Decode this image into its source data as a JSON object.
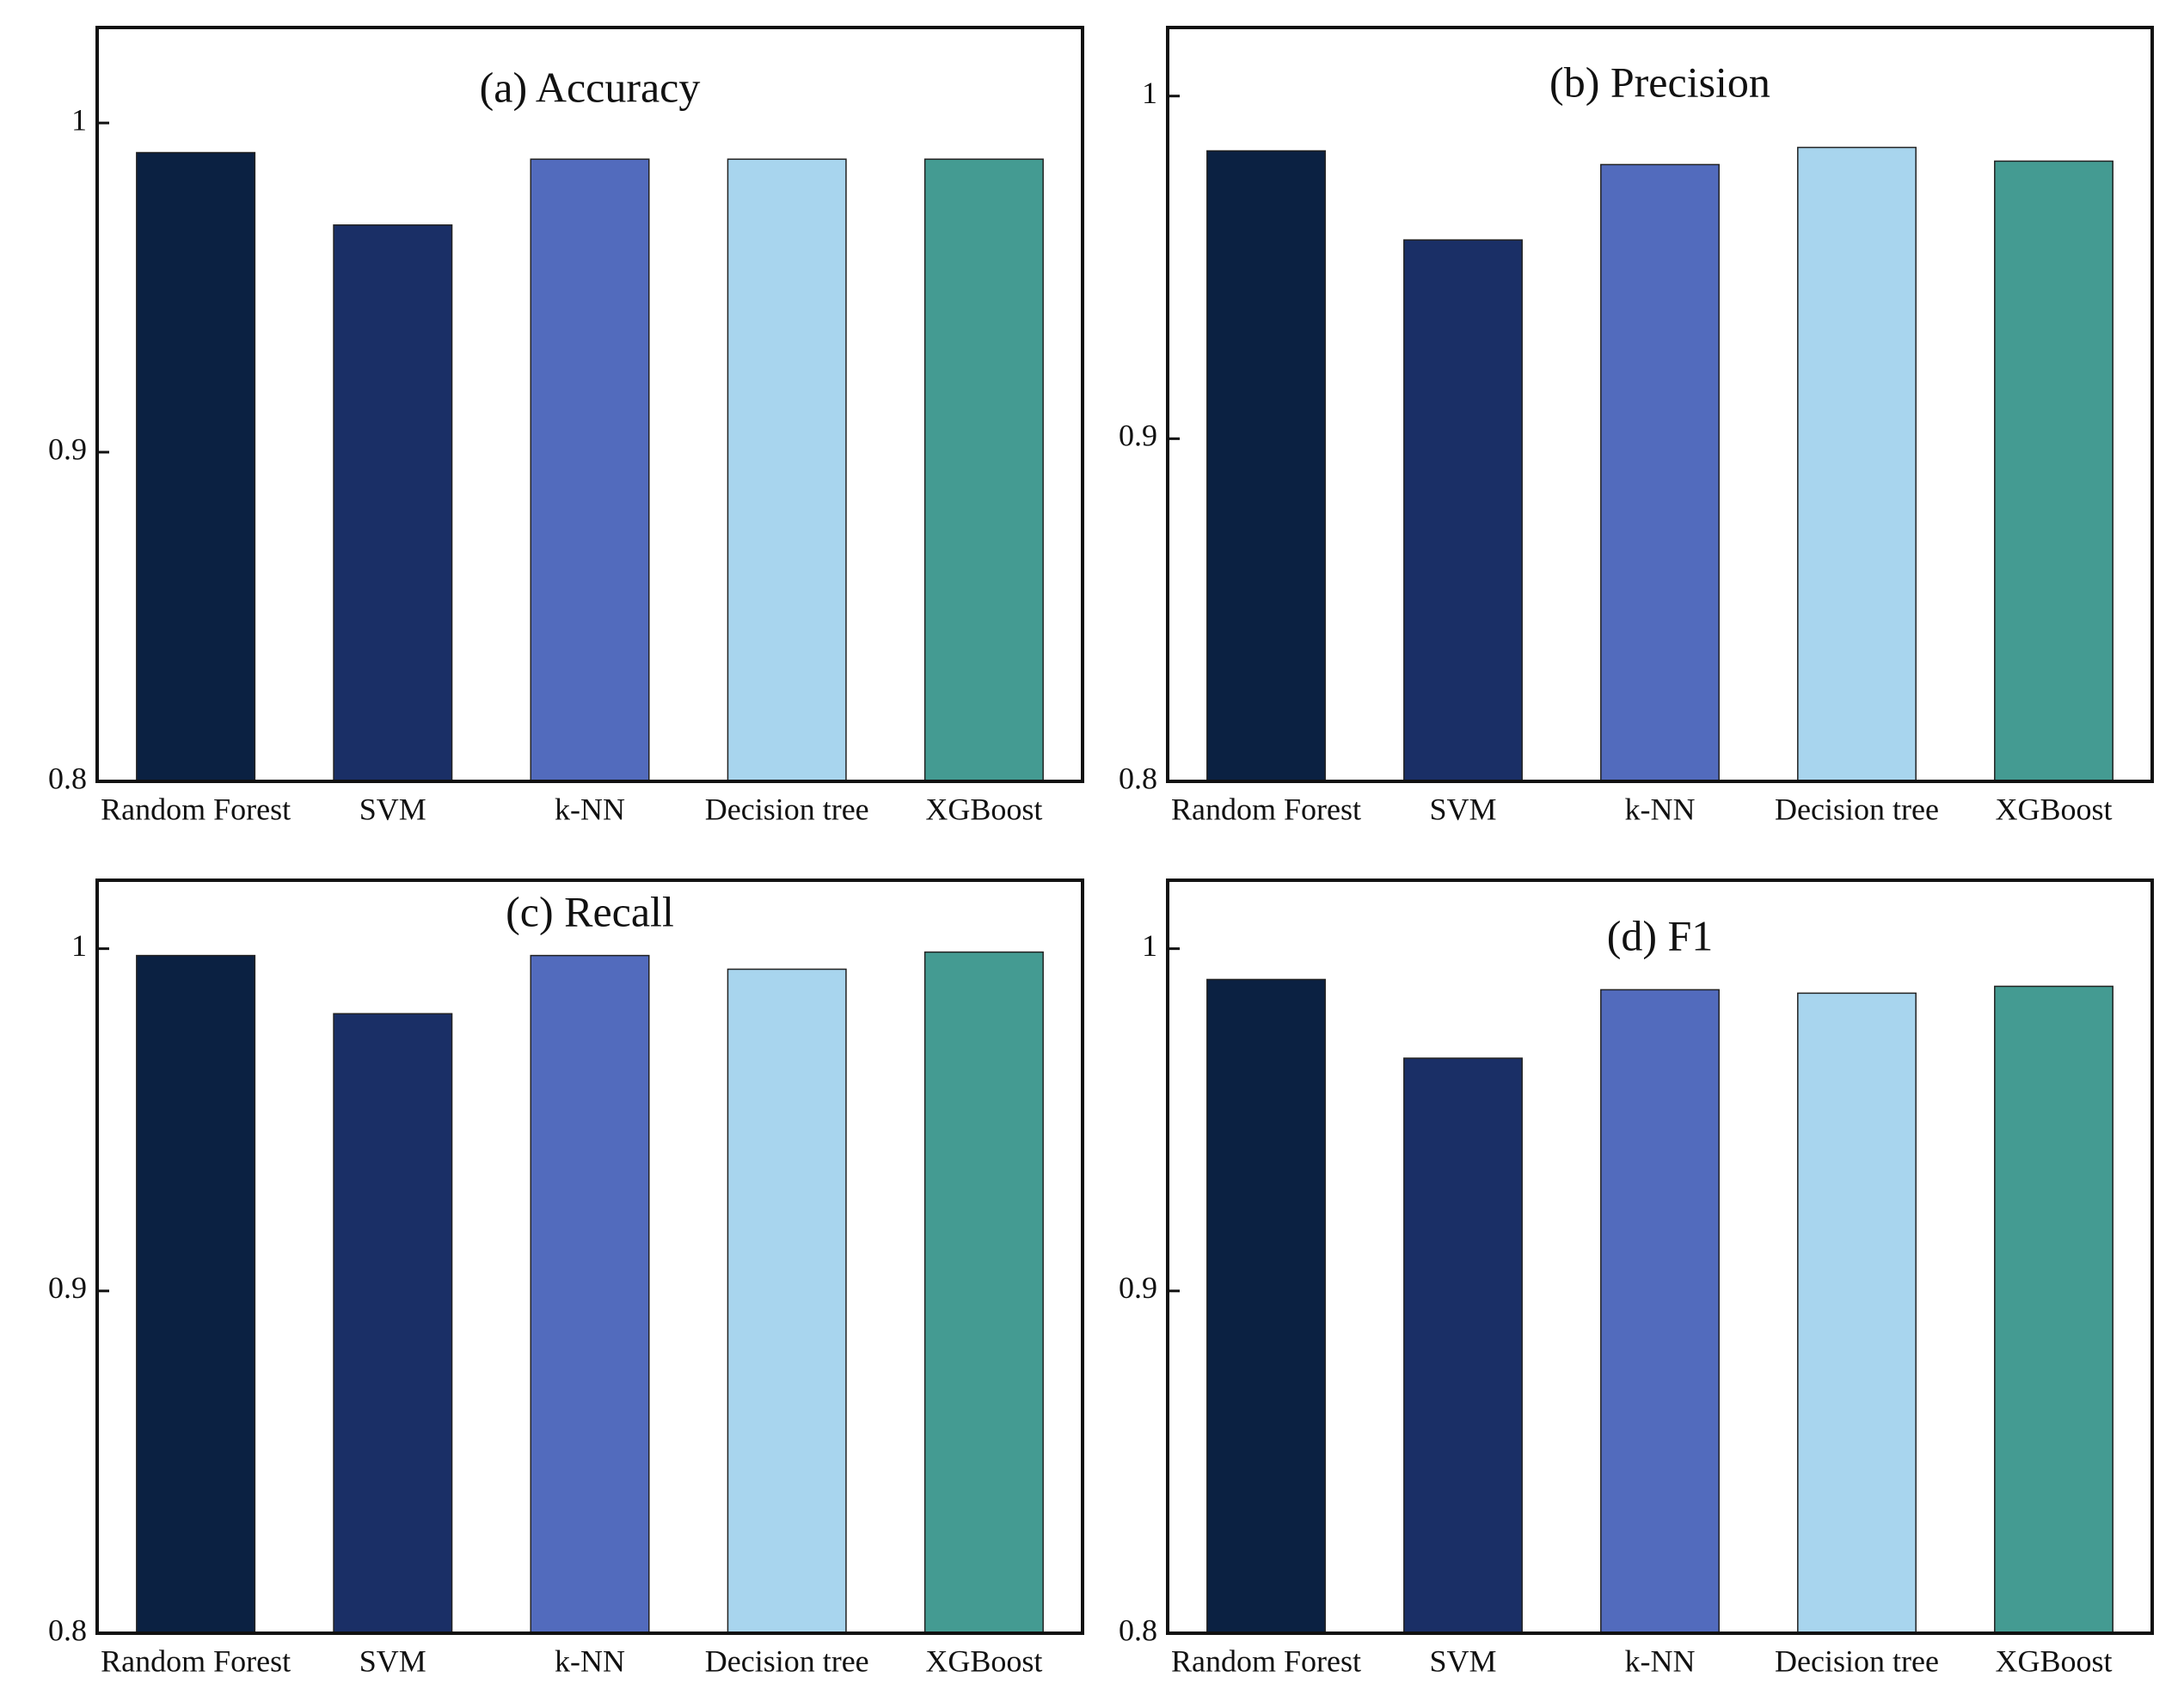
{
  "chart_data": [
    {
      "type": "bar",
      "title": "(a) Accuracy",
      "categories": [
        "Random Forest",
        "SVM",
        "k-NN",
        "Decision tree",
        "XGBoost"
      ],
      "values": [
        0.991,
        0.969,
        0.989,
        0.989,
        0.989
      ],
      "colors": [
        "#0b2142",
        "#1a2f66",
        "#526bbd",
        "#a8d5ee",
        "#449b92"
      ],
      "ylim": [
        0.8,
        1.029
      ],
      "yticks": [
        0.8,
        0.9,
        1.0
      ]
    },
    {
      "type": "bar",
      "title": "(b) Precision",
      "categories": [
        "Random Forest",
        "SVM",
        "k-NN",
        "Decision tree",
        "XGBoost"
      ],
      "values": [
        0.984,
        0.958,
        0.98,
        0.985,
        0.981
      ],
      "colors": [
        "#0b2142",
        "#1a2f66",
        "#526bbd",
        "#a8d5ee",
        "#449b92"
      ],
      "ylim": [
        0.8,
        1.02
      ],
      "yticks": [
        0.8,
        0.9,
        1.0
      ]
    },
    {
      "type": "bar",
      "title": "(c) Recall",
      "categories": [
        "Random Forest",
        "SVM",
        "k-NN",
        "Decision tree",
        "XGBoost"
      ],
      "values": [
        0.998,
        0.981,
        0.998,
        0.994,
        0.999
      ],
      "colors": [
        "#0b2142",
        "#1a2f66",
        "#526bbd",
        "#a8d5ee",
        "#449b92"
      ],
      "ylim": [
        0.8,
        1.02
      ],
      "yticks": [
        0.8,
        0.9,
        1.0
      ]
    },
    {
      "type": "bar",
      "title": "(d) F1",
      "categories": [
        "Random Forest",
        "SVM",
        "k-NN",
        "Decision tree",
        "XGBoost"
      ],
      "values": [
        0.991,
        0.968,
        0.988,
        0.987,
        0.989
      ],
      "colors": [
        "#0b2142",
        "#1a2f66",
        "#526bbd",
        "#a8d5ee",
        "#449b92"
      ],
      "ylim": [
        0.8,
        1.02
      ],
      "yticks": [
        0.8,
        0.9,
        1.0
      ]
    }
  ]
}
